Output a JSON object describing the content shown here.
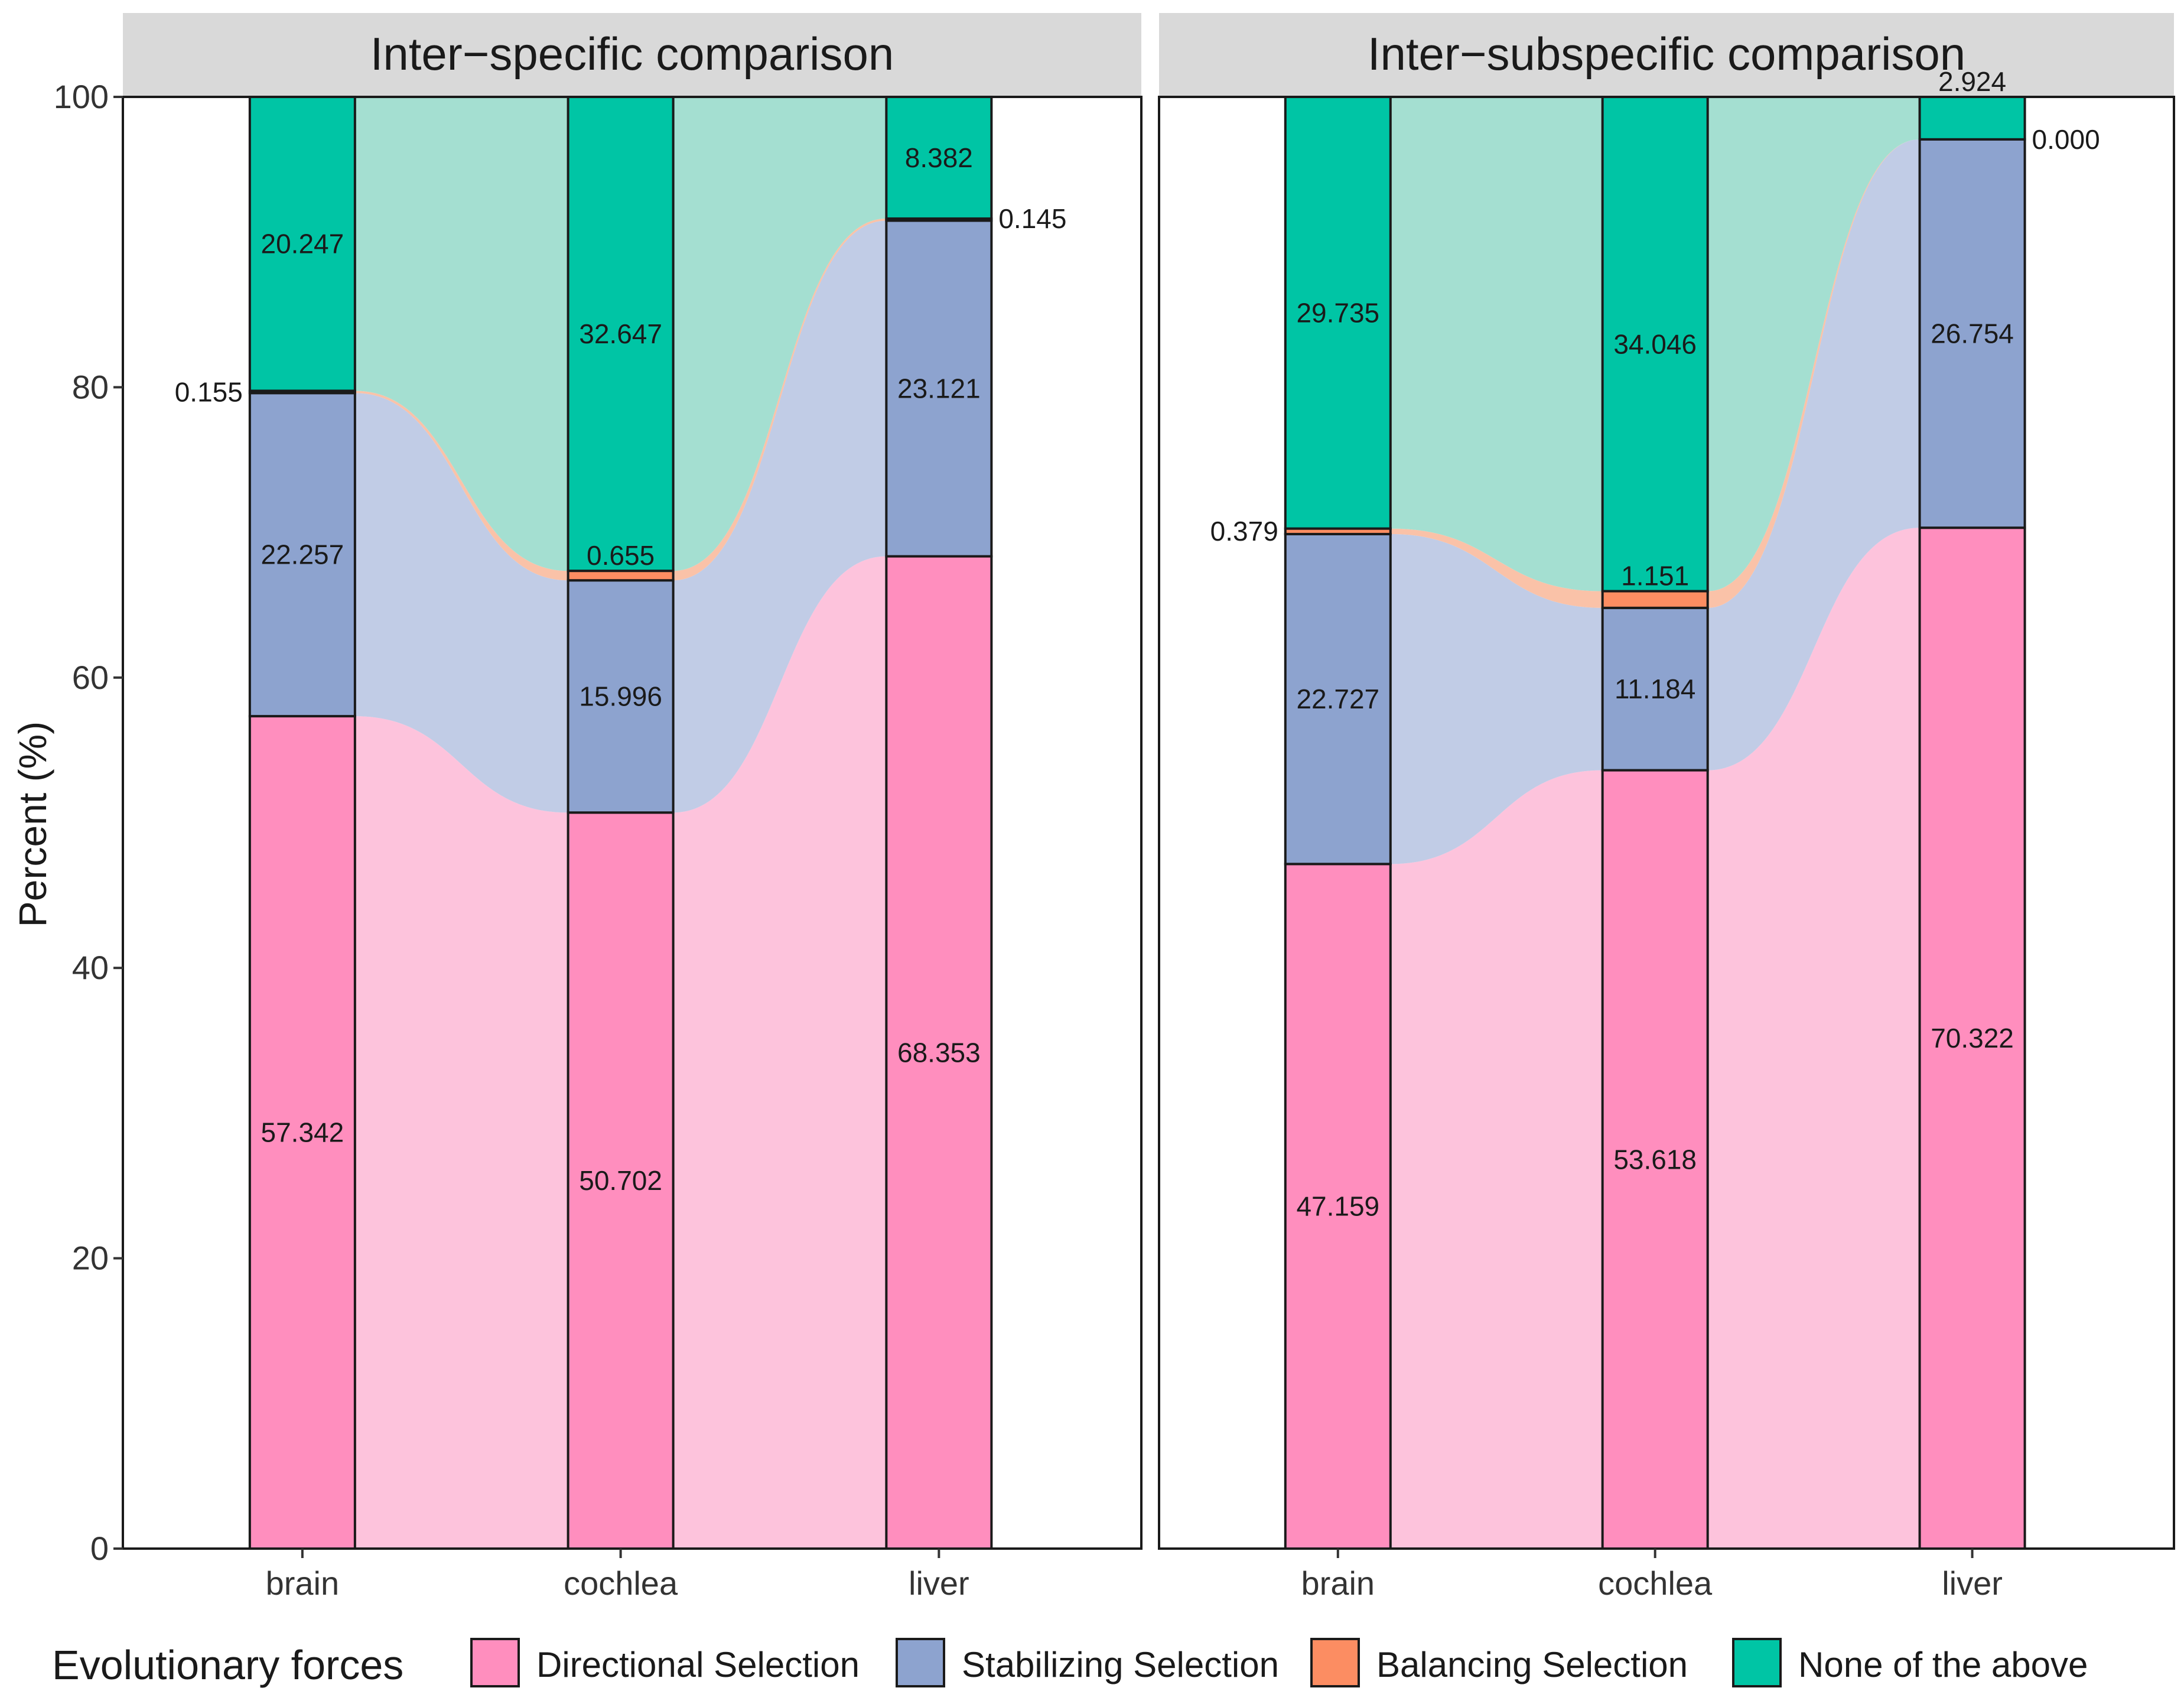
{
  "chart_data": {
    "type": "bar",
    "subtype": "stacked-percent-alluvial",
    "ylabel": "Percent (%)",
    "xlabel": "",
    "ylim": [
      0,
      100
    ],
    "yticks": [
      "0",
      "20",
      "40",
      "60",
      "80",
      "100"
    ],
    "categories": [
      "brain",
      "cochlea",
      "liver"
    ],
    "legend": {
      "title": "Evolutionary forces",
      "placement": "bottom",
      "entries": [
        {
          "name": "Directional Selection",
          "color": "#FF8EBE"
        },
        {
          "name": "Stabilizing Selection",
          "color": "#8DA3CF"
        },
        {
          "name": "Balancing Selection",
          "color": "#FC8D62"
        },
        {
          "name": "None of the above",
          "color": "#00C5A5"
        }
      ]
    },
    "flow_colors": {
      "Directional Selection": "#FDC3DC",
      "Stabilizing Selection": "#C1CCE6",
      "Balancing Selection": "#FAC2A8",
      "None of the above": "#A4DFD1"
    },
    "panels": [
      {
        "title": "Inter−specific comparison",
        "series": [
          {
            "name": "Directional Selection",
            "values": [
              57.342,
              50.702,
              68.353
            ],
            "labels": [
              "57.342",
              "50.702",
              "68.353"
            ]
          },
          {
            "name": "Stabilizing Selection",
            "values": [
              22.257,
              15.996,
              23.121
            ],
            "labels": [
              "22.257",
              "15.996",
              "23.121"
            ]
          },
          {
            "name": "Balancing Selection",
            "values": [
              0.155,
              0.655,
              0.145
            ],
            "labels": [
              "0.155",
              "0.655",
              "0.145"
            ]
          },
          {
            "name": "None of the above",
            "values": [
              20.247,
              32.647,
              8.382
            ],
            "labels": [
              "20.247",
              "32.647",
              "8.382"
            ]
          }
        ]
      },
      {
        "title": "Inter−subspecific comparison",
        "series": [
          {
            "name": "Directional Selection",
            "values": [
              47.159,
              53.618,
              70.322
            ],
            "labels": [
              "47.159",
              "53.618",
              "70.322"
            ]
          },
          {
            "name": "Stabilizing Selection",
            "values": [
              22.727,
              11.184,
              26.754
            ],
            "labels": [
              "22.727",
              "11.184",
              "26.754"
            ]
          },
          {
            "name": "Balancing Selection",
            "values": [
              0.379,
              1.151,
              0.0
            ],
            "labels": [
              "0.379",
              "1.151",
              "0.000"
            ]
          },
          {
            "name": "None of the above",
            "values": [
              29.735,
              34.046,
              2.924
            ],
            "labels": [
              "29.735",
              "34.046",
              "2.924"
            ]
          }
        ]
      }
    ]
  }
}
